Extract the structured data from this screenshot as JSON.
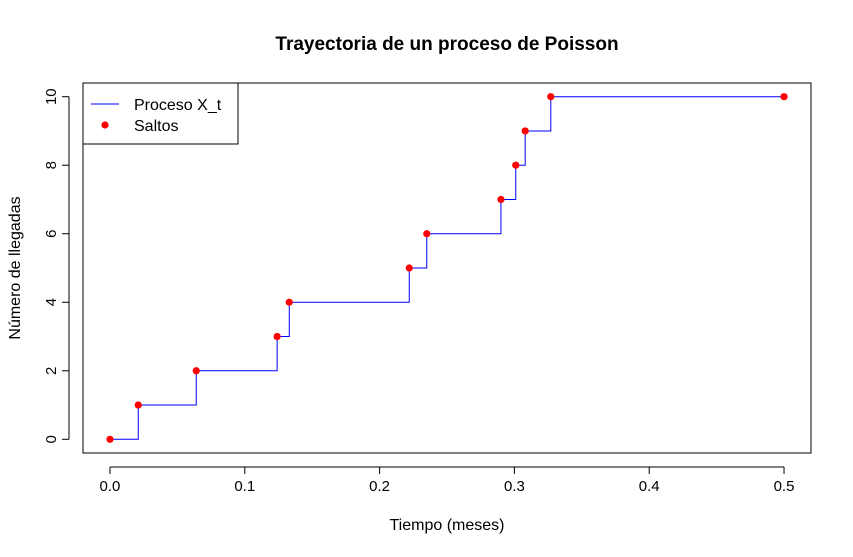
{
  "chart_data": {
    "type": "line",
    "title": "Trayectoria de un proceso de Poisson",
    "xlabel": "Tiempo (meses)",
    "ylabel": "Número de llegadas",
    "xlim": [
      -0.02,
      0.52
    ],
    "ylim": [
      -0.4,
      10.4
    ],
    "xticks": [
      "0.0",
      "0.1",
      "0.2",
      "0.3",
      "0.4",
      "0.5"
    ],
    "xtick_values": [
      0.0,
      0.1,
      0.2,
      0.3,
      0.4,
      0.5
    ],
    "yticks": [
      "0",
      "2",
      "4",
      "6",
      "8",
      "10"
    ],
    "ytick_values": [
      0,
      2,
      4,
      6,
      8,
      10
    ],
    "grid": false,
    "legend_position": "top-left",
    "series": [
      {
        "name": "Proceso X_t",
        "kind": "step",
        "color": "#0000ff",
        "x": [
          0.0,
          0.021,
          0.064,
          0.124,
          0.133,
          0.222,
          0.235,
          0.29,
          0.301,
          0.308,
          0.327,
          0.5
        ],
        "y": [
          0,
          1,
          2,
          3,
          4,
          5,
          6,
          7,
          8,
          9,
          10,
          10
        ]
      },
      {
        "name": "Saltos",
        "kind": "points",
        "color": "#ff0000",
        "x": [
          0.0,
          0.021,
          0.064,
          0.124,
          0.133,
          0.222,
          0.235,
          0.29,
          0.301,
          0.308,
          0.327,
          0.5
        ],
        "y": [
          0,
          1,
          2,
          3,
          4,
          5,
          6,
          7,
          8,
          9,
          10,
          10
        ]
      }
    ]
  }
}
